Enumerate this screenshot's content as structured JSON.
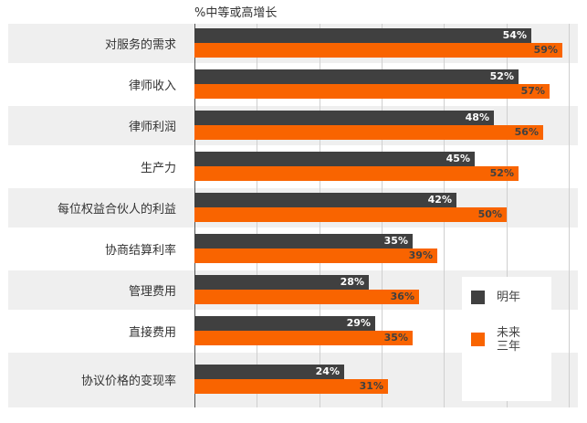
{
  "chart_data": {
    "type": "bar",
    "orientation": "horizontal",
    "title": "%中等或高增长",
    "xlabel": "",
    "ylabel": "",
    "xlim": [
      0,
      60
    ],
    "grid": true,
    "legend_position": "inside-right-bottom",
    "categories": [
      "对服务的需求",
      "律师收入",
      "律师利润",
      "生产力",
      "每位权益合伙人的利益",
      "协商结算利率",
      "管理费用",
      "直接费用",
      "协议价格的变现率"
    ],
    "series": [
      {
        "name": "明年",
        "color": "#404040",
        "values": [
          54,
          52,
          48,
          45,
          42,
          35,
          28,
          29,
          24
        ]
      },
      {
        "name": "未来三年",
        "color": "#f96400",
        "values": [
          59,
          57,
          56,
          52,
          50,
          39,
          36,
          35,
          31
        ]
      }
    ]
  },
  "title": "%中等或高增长",
  "rows": [
    {
      "label": "对服务的需求",
      "a": "54%",
      "b": "59%"
    },
    {
      "label": "律师收入",
      "a": "52%",
      "b": "57%"
    },
    {
      "label": "律师利润",
      "a": "48%",
      "b": "56%"
    },
    {
      "label": "生产力",
      "a": "45%",
      "b": "52%"
    },
    {
      "label": "每位权益合伙人的利益",
      "a": "42%",
      "b": "50%"
    },
    {
      "label": "协商结算利率",
      "a": "35%",
      "b": "39%"
    },
    {
      "label": "管理费用",
      "a": "28%",
      "b": "36%"
    },
    {
      "label": "直接费用",
      "a": "29%",
      "b": "35%"
    },
    {
      "label": "协议价格的变现率",
      "a": "24%",
      "b": "31%"
    }
  ],
  "legend": {
    "next_year": "明年",
    "three_years_line1": "未来",
    "three_years_line2": "三年"
  }
}
